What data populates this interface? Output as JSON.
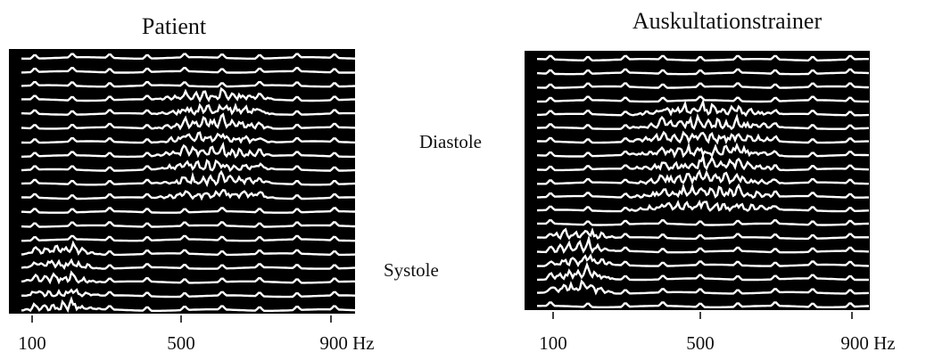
{
  "panels": [
    {
      "title": "Patient",
      "x_labels": [
        "100",
        "500",
        "900 Hz"
      ]
    },
    {
      "title": "Auskultationstrainer",
      "x_labels": [
        "100",
        "500",
        "900 Hz"
      ]
    }
  ],
  "annotations": {
    "diastole": "Diastole",
    "systole": "Systole"
  }
}
